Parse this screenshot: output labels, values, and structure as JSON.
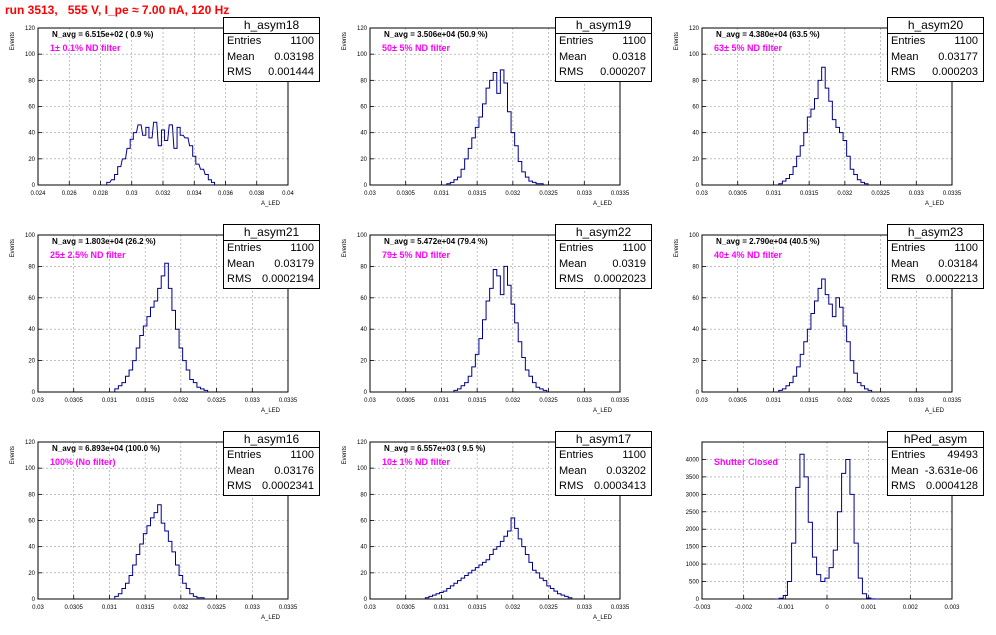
{
  "run_title": "run 3513,   555 V, I_pe ≈ 7.00 nA, 120 Hz",
  "colors": {
    "title": "#ff0000",
    "filter_text": "#ff00ff",
    "histogram": "#00008b",
    "grid": "#999999"
  },
  "stat_labels": {
    "entries": "Entries",
    "mean": "Mean",
    "rms": "RMS"
  },
  "chart_data": [
    {
      "type": "histogram",
      "title": "h_asym18",
      "n_avg_label": "N_avg = 6.515e+02 ( 0.9 %)",
      "filter_label": "1± 0.1% ND filter",
      "ylabel": "Events",
      "xlabel": "A_LED",
      "stats": {
        "entries": "1100",
        "mean": "0.03198",
        "rms": "0.001444"
      },
      "xlim": [
        0.024,
        0.04
      ],
      "ylim": [
        0,
        120
      ],
      "xticks": [
        "0.024",
        "0.026",
        "0.028",
        "0.03",
        "0.032",
        "0.034",
        "0.036",
        "0.038",
        "0.04"
      ],
      "yticks": [
        "0",
        "20",
        "40",
        "60",
        "80",
        "100",
        "120"
      ],
      "x": [
        0.0285,
        0.0288,
        0.029,
        0.0292,
        0.0295,
        0.0298,
        0.03,
        0.0302,
        0.0305,
        0.0308,
        0.031,
        0.0312,
        0.0315,
        0.0318,
        0.032,
        0.0322,
        0.0325,
        0.0328,
        0.033,
        0.0332,
        0.0335,
        0.0338,
        0.034,
        0.0342,
        0.0345,
        0.0348,
        0.035,
        0.0352
      ],
      "values": [
        2,
        4,
        8,
        14,
        20,
        28,
        35,
        40,
        46,
        38,
        44,
        36,
        48,
        30,
        42,
        34,
        46,
        28,
        44,
        38,
        36,
        30,
        22,
        16,
        12,
        8,
        4,
        2
      ]
    },
    {
      "type": "histogram",
      "title": "h_asym19",
      "n_avg_label": "N_avg = 3.506e+04 (50.9 %)",
      "filter_label": "50± 5% ND filter",
      "ylabel": "Events",
      "xlabel": "A_LED",
      "stats": {
        "entries": "1100",
        "mean": "0.0318",
        "rms": "0.000207"
      },
      "xlim": [
        0.03,
        0.0335
      ],
      "ylim": [
        0,
        120
      ],
      "xticks": [
        "0.03",
        "0.0305",
        "0.031",
        "0.0315",
        "0.032",
        "0.0325",
        "0.033",
        "0.0335"
      ],
      "yticks": [
        "0",
        "20",
        "40",
        "60",
        "80",
        "100",
        "120"
      ],
      "x": [
        0.0311,
        0.03115,
        0.0312,
        0.03125,
        0.0313,
        0.03135,
        0.0314,
        0.03145,
        0.0315,
        0.03155,
        0.0316,
        0.03165,
        0.0317,
        0.03175,
        0.0318,
        0.03185,
        0.0319,
        0.03195,
        0.032,
        0.03205,
        0.0321,
        0.03215,
        0.0322,
        0.03225,
        0.0323,
        0.03235,
        0.0324
      ],
      "values": [
        1,
        2,
        4,
        6,
        12,
        20,
        28,
        36,
        44,
        52,
        62,
        74,
        80,
        86,
        70,
        88,
        78,
        56,
        40,
        30,
        18,
        10,
        6,
        3,
        2,
        1,
        1
      ]
    },
    {
      "type": "histogram",
      "title": "h_asym20",
      "n_avg_label": "N_avg = 4.380e+04 (63.5 %)",
      "filter_label": "63± 5% ND filter",
      "ylabel": "Events",
      "xlabel": "A_LED",
      "stats": {
        "entries": "1100",
        "mean": "0.03177",
        "rms": "0.000203"
      },
      "xlim": [
        0.03,
        0.0335
      ],
      "ylim": [
        0,
        120
      ],
      "xticks": [
        "0.03",
        "0.0305",
        "0.031",
        "0.0315",
        "0.032",
        "0.0325",
        "0.033",
        "0.0335"
      ],
      "yticks": [
        "0",
        "20",
        "40",
        "60",
        "80",
        "100",
        "120"
      ],
      "x": [
        0.0311,
        0.03115,
        0.0312,
        0.03125,
        0.0313,
        0.03135,
        0.0314,
        0.03145,
        0.0315,
        0.03155,
        0.0316,
        0.03165,
        0.0317,
        0.03175,
        0.0318,
        0.03185,
        0.0319,
        0.03195,
        0.032,
        0.03205,
        0.0321,
        0.03215,
        0.0322,
        0.03225,
        0.0323
      ],
      "values": [
        1,
        3,
        5,
        8,
        14,
        22,
        30,
        40,
        52,
        58,
        66,
        80,
        90,
        74,
        64,
        50,
        44,
        40,
        34,
        22,
        12,
        8,
        4,
        2,
        1
      ]
    },
    {
      "type": "histogram",
      "title": "h_asym21",
      "n_avg_label": "N_avg = 1.803e+04 (26.2 %)",
      "filter_label": "25± 2.5% ND filter",
      "ylabel": "Events",
      "xlabel": "A_LED",
      "stats": {
        "entries": "1100",
        "mean": "0.03179",
        "rms": "0.0002194"
      },
      "xlim": [
        0.03,
        0.0335
      ],
      "ylim": [
        0,
        100
      ],
      "xticks": [
        "0.03",
        "0.0305",
        "0.031",
        "0.0315",
        "0.032",
        "0.0325",
        "0.033",
        "0.0335"
      ],
      "yticks": [
        "0",
        "20",
        "40",
        "60",
        "80",
        "100"
      ],
      "x": [
        0.0311,
        0.03115,
        0.0312,
        0.03125,
        0.0313,
        0.03135,
        0.0314,
        0.03145,
        0.0315,
        0.03155,
        0.0316,
        0.03165,
        0.0317,
        0.03175,
        0.0318,
        0.03185,
        0.0319,
        0.03195,
        0.032,
        0.03205,
        0.0321,
        0.03215,
        0.0322,
        0.03225,
        0.0323,
        0.03235
      ],
      "values": [
        2,
        4,
        6,
        10,
        14,
        20,
        28,
        36,
        42,
        48,
        54,
        58,
        66,
        74,
        82,
        66,
        52,
        40,
        28,
        20,
        14,
        8,
        6,
        3,
        2,
        1
      ]
    },
    {
      "type": "histogram",
      "title": "h_asym22",
      "n_avg_label": "N_avg = 5.472e+04 (79.4 %)",
      "filter_label": "79± 5% ND filter",
      "ylabel": "Events",
      "xlabel": "A_LED",
      "stats": {
        "entries": "1100",
        "mean": "0.0319",
        "rms": "0.0002023"
      },
      "xlim": [
        0.03,
        0.0335
      ],
      "ylim": [
        0,
        100
      ],
      "xticks": [
        "0.03",
        "0.0305",
        "0.031",
        "0.0315",
        "0.032",
        "0.0325",
        "0.033",
        "0.0335"
      ],
      "yticks": [
        "0",
        "20",
        "40",
        "60",
        "80",
        "100"
      ],
      "x": [
        0.0312,
        0.03125,
        0.0313,
        0.03135,
        0.0314,
        0.03145,
        0.0315,
        0.03155,
        0.0316,
        0.03165,
        0.0317,
        0.03175,
        0.0318,
        0.03185,
        0.0319,
        0.03195,
        0.032,
        0.03205,
        0.0321,
        0.03215,
        0.0322,
        0.03225,
        0.0323,
        0.03235,
        0.0324,
        0.03245
      ],
      "values": [
        1,
        2,
        4,
        6,
        10,
        16,
        24,
        34,
        46,
        58,
        66,
        78,
        74,
        62,
        80,
        68,
        56,
        44,
        32,
        22,
        14,
        10,
        6,
        3,
        2,
        1
      ]
    },
    {
      "type": "histogram",
      "title": "h_asym23",
      "n_avg_label": "N_avg = 2.790e+04 (40.5 %)",
      "filter_label": "40± 4% ND filter",
      "ylabel": "Events",
      "xlabel": "A_LED",
      "stats": {
        "entries": "1100",
        "mean": "0.03184",
        "rms": "0.0002213"
      },
      "xlim": [
        0.03,
        0.0335
      ],
      "ylim": [
        0,
        100
      ],
      "xticks": [
        "0.03",
        "0.0305",
        "0.031",
        "0.0315",
        "0.032",
        "0.0325",
        "0.033",
        "0.0335"
      ],
      "yticks": [
        "0",
        "20",
        "40",
        "60",
        "80",
        "100"
      ],
      "x": [
        0.0311,
        0.03115,
        0.0312,
        0.03125,
        0.0313,
        0.03135,
        0.0314,
        0.03145,
        0.0315,
        0.03155,
        0.0316,
        0.03165,
        0.0317,
        0.03175,
        0.0318,
        0.03185,
        0.0319,
        0.03195,
        0.032,
        0.03205,
        0.0321,
        0.03215,
        0.0322,
        0.03225,
        0.0323,
        0.03235
      ],
      "values": [
        1,
        2,
        4,
        6,
        10,
        16,
        24,
        32,
        40,
        50,
        58,
        66,
        72,
        62,
        56,
        48,
        60,
        54,
        42,
        32,
        20,
        12,
        6,
        4,
        2,
        1
      ]
    },
    {
      "type": "histogram",
      "title": "h_asym16",
      "n_avg_label": "N_avg = 6.893e+04 (100.0 %)",
      "filter_label": "100% (No filter)",
      "ylabel": "Events",
      "xlabel": "A_LED",
      "stats": {
        "entries": "1100",
        "mean": "0.03176",
        "rms": "0.0002341"
      },
      "xlim": [
        0.03,
        0.0335
      ],
      "ylim": [
        0,
        120
      ],
      "xticks": [
        "0.03",
        "0.0305",
        "0.031",
        "0.0315",
        "0.032",
        "0.0325",
        "0.033",
        "0.0335"
      ],
      "yticks": [
        "0",
        "20",
        "40",
        "60",
        "80",
        "100",
        "120"
      ],
      "x": [
        0.0311,
        0.03115,
        0.0312,
        0.03125,
        0.0313,
        0.03135,
        0.0314,
        0.03145,
        0.0315,
        0.03155,
        0.0316,
        0.03165,
        0.0317,
        0.03175,
        0.0318,
        0.03185,
        0.0319,
        0.03195,
        0.032,
        0.03205,
        0.0321,
        0.03215,
        0.0322,
        0.03225,
        0.0323
      ],
      "values": [
        2,
        4,
        8,
        12,
        18,
        26,
        34,
        42,
        50,
        56,
        62,
        66,
        72,
        58,
        52,
        44,
        36,
        26,
        18,
        12,
        8,
        4,
        2,
        1,
        1
      ]
    },
    {
      "type": "histogram",
      "title": "h_asym17",
      "n_avg_label": "N_avg = 6.557e+03 ( 9.5 %)",
      "filter_label": "10± 1% ND filter",
      "ylabel": "Events",
      "xlabel": "A_LED",
      "stats": {
        "entries": "1100",
        "mean": "0.03202",
        "rms": "0.0003413"
      },
      "xlim": [
        0.03,
        0.0335
      ],
      "ylim": [
        0,
        120
      ],
      "xticks": [
        "0.03",
        "0.0305",
        "0.031",
        "0.0315",
        "0.032",
        "0.0325",
        "0.033",
        "0.0335"
      ],
      "yticks": [
        "0",
        "20",
        "40",
        "60",
        "80",
        "100",
        "120"
      ],
      "x": [
        0.0308,
        0.03085,
        0.0309,
        0.03095,
        0.031,
        0.03105,
        0.0311,
        0.03115,
        0.0312,
        0.03125,
        0.0313,
        0.03135,
        0.0314,
        0.03145,
        0.0315,
        0.03155,
        0.0316,
        0.03165,
        0.0317,
        0.03175,
        0.0318,
        0.03185,
        0.0319,
        0.03195,
        0.032,
        0.03205,
        0.0321,
        0.03215,
        0.0322,
        0.03225,
        0.0323,
        0.03235,
        0.0324,
        0.03245,
        0.0325,
        0.03255,
        0.0326,
        0.03265,
        0.0327,
        0.03275,
        0.0328
      ],
      "values": [
        1,
        2,
        3,
        4,
        5,
        6,
        8,
        10,
        12,
        14,
        16,
        18,
        20,
        22,
        24,
        26,
        28,
        30,
        34,
        38,
        40,
        44,
        48,
        52,
        62,
        54,
        46,
        40,
        34,
        28,
        22,
        20,
        16,
        14,
        10,
        8,
        6,
        4,
        3,
        2,
        1
      ]
    },
    {
      "type": "histogram",
      "title": "hPed_asym",
      "n_avg_label": "",
      "filter_label": "Shutter Closed",
      "ylabel": "",
      "xlabel": "",
      "stats": {
        "entries": "49493",
        "mean": "-3.631e-06",
        "rms": "0.0004128"
      },
      "xlim": [
        -0.003,
        0.003
      ],
      "ylim": [
        0,
        4500
      ],
      "xticks": [
        "-0.003",
        "-0.002",
        "-0.001",
        "0",
        "0.001",
        "0.002",
        "0.003"
      ],
      "yticks": [
        "0",
        "500",
        "1000",
        "1500",
        "2000",
        "2500",
        "3000",
        "3500",
        "4000"
      ],
      "x": [
        -0.0012,
        -0.0011,
        -0.001,
        -0.0009,
        -0.0008,
        -0.0007,
        -0.0006,
        -0.0005,
        -0.0004,
        -0.0003,
        -0.0002,
        -0.0001,
        0.0,
        0.0001,
        0.0002,
        0.0003,
        0.0004,
        0.0005,
        0.0006,
        0.0007,
        0.0008,
        0.0009,
        0.001,
        0.0011,
        0.0012
      ],
      "values": [
        0,
        20,
        100,
        500,
        1600,
        3200,
        4150,
        3500,
        2200,
        1200,
        700,
        500,
        600,
        900,
        1400,
        2500,
        3600,
        4000,
        3000,
        1600,
        600,
        150,
        30,
        5,
        0
      ]
    }
  ]
}
